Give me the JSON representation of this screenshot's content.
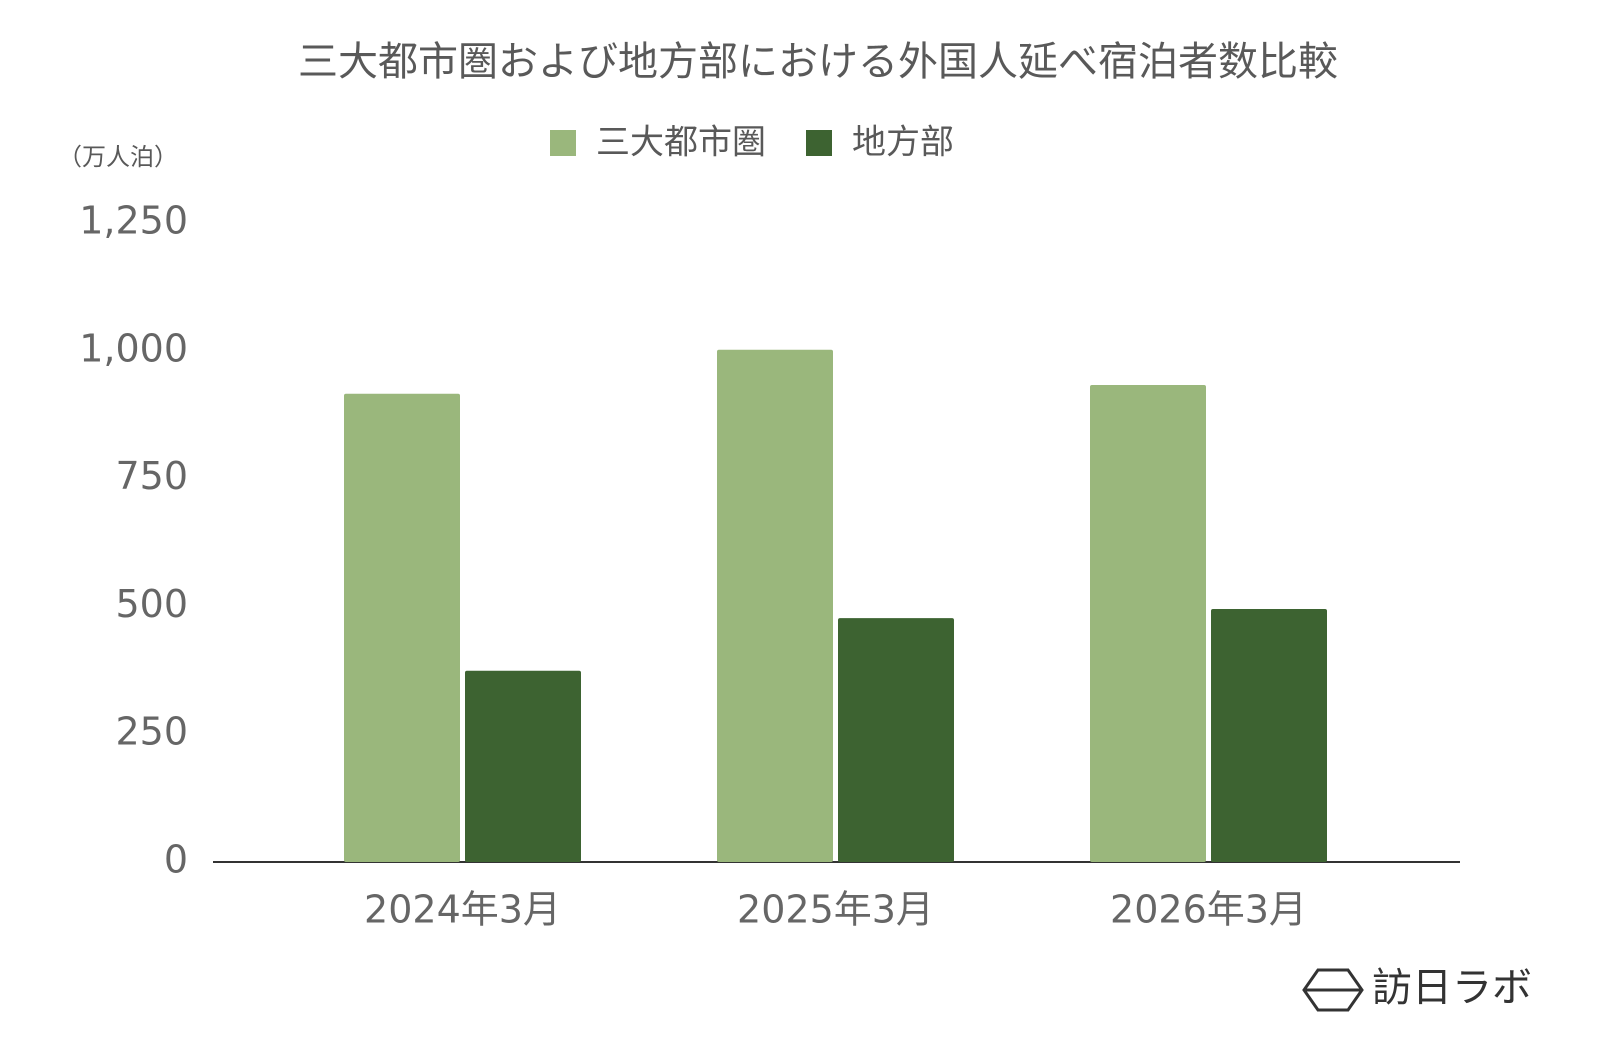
{
  "chart_data": {
    "type": "bar",
    "title": "三大都市圏および地方部における外国人延べ宿泊者数比較",
    "y_label": "（万人泊）",
    "watermark": "訪日ラボ",
    "categories": [
      "2024年3月",
      "2025年3月",
      "2026年3月"
    ],
    "series": [
      {
        "name": "三大都市圏",
        "color": "#9ab77c",
        "values": [
          916,
          1002,
          933
        ]
      },
      {
        "name": "地方部",
        "color": "#3d6331",
        "values": [
          374,
          477,
          495
        ]
      }
    ],
    "ylim": [
      0,
      1250
    ],
    "yticks": [
      0,
      250,
      500,
      750,
      {
        "value": 1000,
        "label": "1,000"
      },
      {
        "value": 1250,
        "label": "1,250"
      }
    ],
    "grid": false,
    "legend": "top"
  }
}
